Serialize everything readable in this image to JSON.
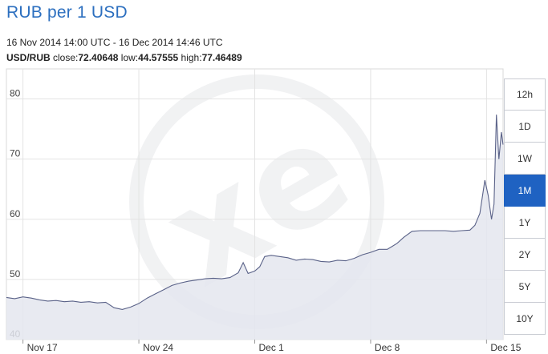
{
  "header": {
    "title": "RUB per 1 USD",
    "range": "16 Nov 2014 14:00 UTC - 16 Dec 2014 14:46 UTC",
    "pair": "USD/RUB",
    "close_label": "close:",
    "close": "72.40648",
    "low_label": "low:",
    "low": "44.57555",
    "high_label": "high:",
    "high": "77.46489"
  },
  "periods": [
    "12h",
    "1D",
    "1W",
    "1M",
    "1Y",
    "2Y",
    "5Y",
    "10Y"
  ],
  "active_period": "1M",
  "colors": {
    "title": "#2c6fbf",
    "line": "#5a6288",
    "fill": "#e4e6ef",
    "grid": "#e3e3e3",
    "active_button": "#1f62c2"
  },
  "chart_data": {
    "type": "area",
    "x_unit": "day of Nov-Dec 2014 (Nov 16 = 0)",
    "xlim": [
      0,
      30
    ],
    "ylim": [
      40,
      85
    ],
    "yticks": [
      40,
      50,
      60,
      70,
      80
    ],
    "xticks": [
      {
        "label": "Nov 17",
        "x": 1
      },
      {
        "label": "Nov 24",
        "x": 8
      },
      {
        "label": "Dec 1",
        "x": 15
      },
      {
        "label": "Dec 8",
        "x": 22
      },
      {
        "label": "Dec 15",
        "x": 29
      }
    ],
    "grid": true,
    "watermark": "xe",
    "series": [
      {
        "x": [
          0,
          0.5,
          1,
          1.5,
          2,
          2.5,
          3,
          3.5,
          4,
          4.5,
          5,
          5.5,
          6,
          6.5,
          7,
          7.5,
          8,
          8.5,
          9,
          9.5,
          10,
          10.5,
          11,
          11.5,
          12,
          12.5,
          13,
          13.5,
          14,
          14.3,
          14.6,
          15,
          15.3,
          15.6,
          16,
          16.5,
          17,
          17.5,
          18,
          18.5,
          19,
          19.5,
          20,
          20.5,
          21,
          21.5,
          22,
          22.5,
          23,
          23.3,
          23.6,
          24,
          24.5,
          25,
          25.5,
          26,
          26.5,
          27,
          27.5,
          28,
          28.3,
          28.6,
          28.9,
          29.1,
          29.3,
          29.45,
          29.6,
          29.75,
          29.9,
          30
        ],
        "y": [
          47,
          46.8,
          47.1,
          46.9,
          46.6,
          46.4,
          46.5,
          46.3,
          46.4,
          46.2,
          46.3,
          46.1,
          46.2,
          45.3,
          45.0,
          45.4,
          46.0,
          46.9,
          47.6,
          48.3,
          49.0,
          49.4,
          49.7,
          49.9,
          50.1,
          50.2,
          50.1,
          50.3,
          51.1,
          52.8,
          51.0,
          51.4,
          52.1,
          53.8,
          54.0,
          53.8,
          53.6,
          53.2,
          53.4,
          53.3,
          53.0,
          52.9,
          53.2,
          53.1,
          53.5,
          54.1,
          54.5,
          55.0,
          55.0,
          55.5,
          56.0,
          57.0,
          58.0,
          58.1,
          58.1,
          58.1,
          58.1,
          58.0,
          58.1,
          58.2,
          59.0,
          61.0,
          66.5,
          64.0,
          60.0,
          62.5,
          77.4,
          70.0,
          74.5,
          72.4
        ]
      }
    ]
  }
}
